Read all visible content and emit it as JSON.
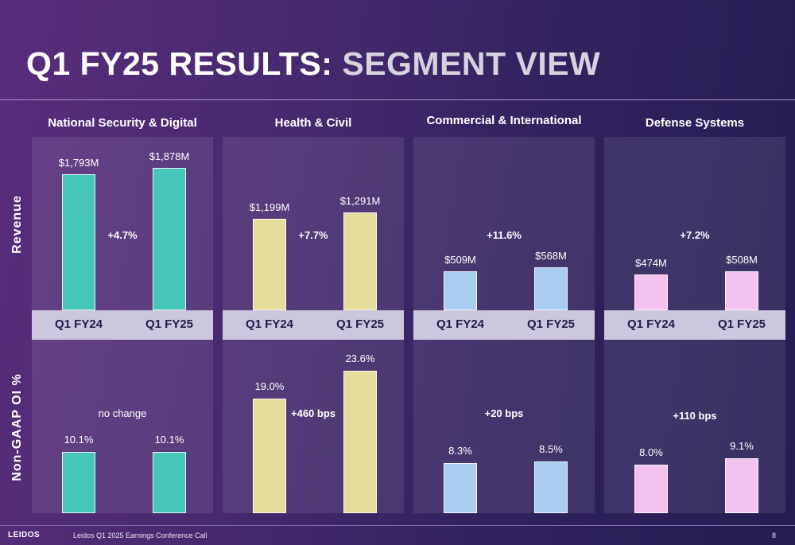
{
  "title_part1": "Q1 FY25 RESULTS:",
  "title_part2": "SEGMENT VIEW",
  "row_labels": {
    "revenue": "Revenue",
    "oi": "Non-GAAP OI %"
  },
  "period_labels": [
    "Q1 FY24",
    "Q1 FY25"
  ],
  "colors": {
    "national_security": "#45c6b8",
    "health_civil": "#e6dd9d",
    "commercial": "#a8cdf0",
    "defense": "#f2c3ef"
  },
  "footer": {
    "logo": "LEIDOS",
    "text": "Leidos Q1 2025 Earnings Conference Call",
    "page": "8"
  },
  "chart_data": [
    {
      "type": "bar",
      "title": "National Security & Digital",
      "categories": [
        "Q1 FY24",
        "Q1 FY25"
      ],
      "revenue": {
        "values": [
          1793,
          1878
        ],
        "labels": [
          "$1,793M",
          "$1,878M"
        ],
        "change": "+4.7%"
      },
      "oi": {
        "values": [
          10.1,
          10.1
        ],
        "labels": [
          "10.1%",
          "10.1%"
        ],
        "change": "no change"
      }
    },
    {
      "type": "bar",
      "title": "Health & Civil",
      "categories": [
        "Q1 FY24",
        "Q1 FY25"
      ],
      "revenue": {
        "values": [
          1199,
          1291
        ],
        "labels": [
          "$1,199M",
          "$1,291M"
        ],
        "change": "+7.7%"
      },
      "oi": {
        "values": [
          19.0,
          23.6
        ],
        "labels": [
          "19.0%",
          "23.6%"
        ],
        "change": "+460 bps"
      }
    },
    {
      "type": "bar",
      "title": "Commercial & International",
      "categories": [
        "Q1 FY24",
        "Q1 FY25"
      ],
      "revenue": {
        "values": [
          509,
          568
        ],
        "labels": [
          "$509M",
          "$568M"
        ],
        "change": "+11.6%"
      },
      "oi": {
        "values": [
          8.3,
          8.5
        ],
        "labels": [
          "8.3%",
          "8.5%"
        ],
        "change": "+20 bps"
      }
    },
    {
      "type": "bar",
      "title": "Defense Systems",
      "categories": [
        "Q1 FY24",
        "Q1 FY25"
      ],
      "revenue": {
        "values": [
          474,
          508
        ],
        "labels": [
          "$474M",
          "$508M"
        ],
        "change": "+7.2%"
      },
      "oi": {
        "values": [
          8.0,
          9.1
        ],
        "labels": [
          "8.0%",
          "9.1%"
        ],
        "change": "+110 bps"
      }
    }
  ]
}
